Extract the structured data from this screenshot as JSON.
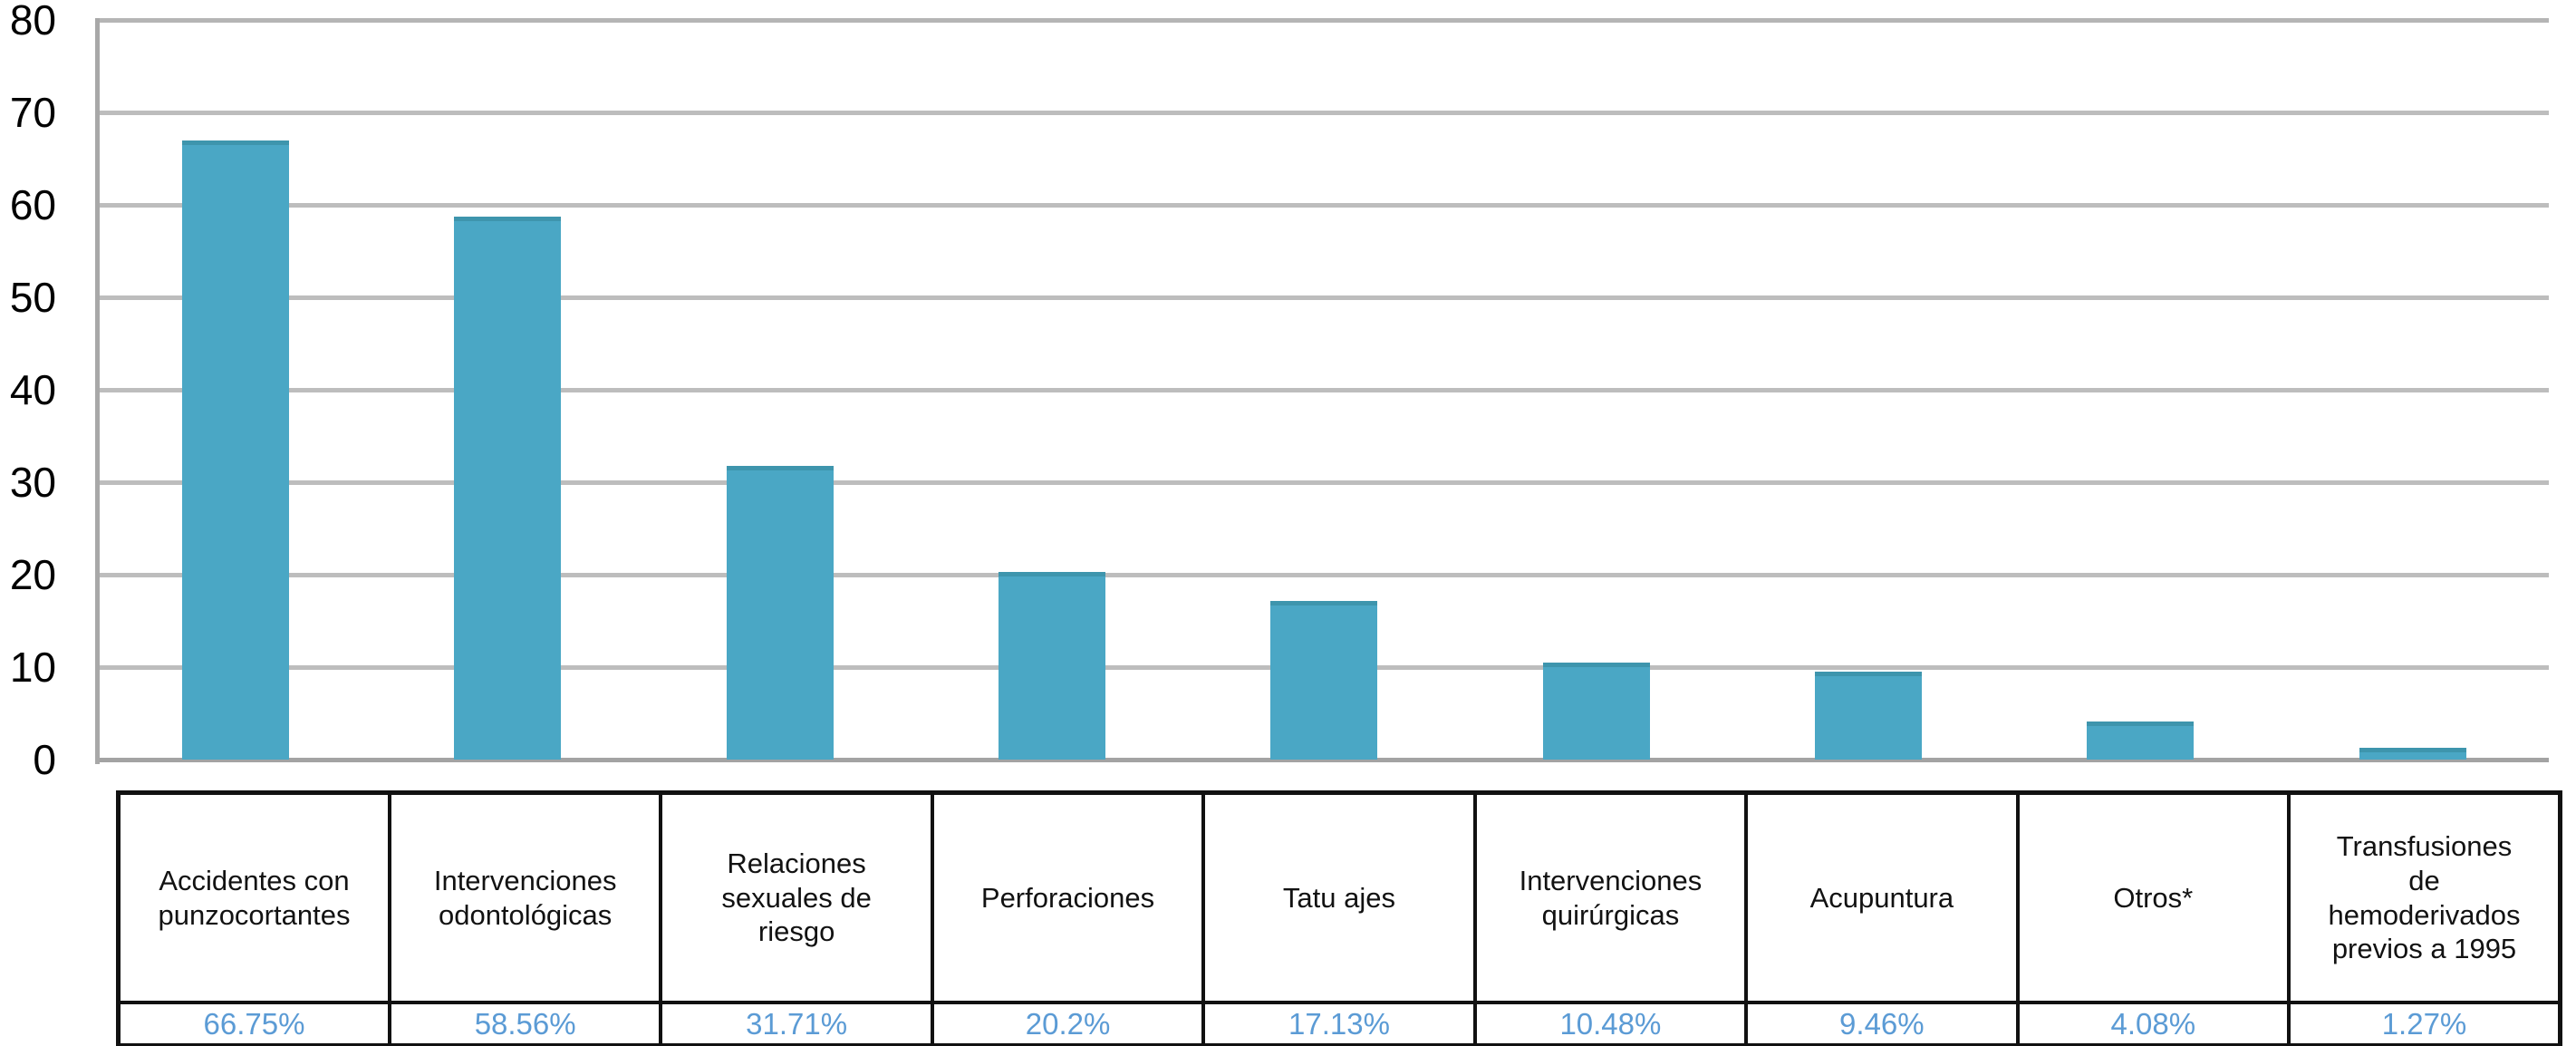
{
  "chart_data": {
    "type": "bar",
    "categories": [
      "Accidentes con punzocortantes",
      "Intervenciones odontológicas",
      "Relaciones sexuales de riesgo",
      "Perforaciones",
      "Tatu ajes",
      "Intervenciones quirúrgicas",
      "Acupuntura",
      "Otros*",
      "Transfusiones de hemoderivados previos a 1995"
    ],
    "values": [
      66.75,
      58.56,
      31.71,
      20.2,
      17.13,
      10.48,
      9.46,
      4.08,
      1.27
    ],
    "value_labels": [
      "66.75%",
      "58.56%",
      "31.71%",
      "20.2%",
      "17.13%",
      "10.48%",
      "9.46%",
      "4.08%",
      "1.27%"
    ],
    "title": "",
    "xlabel": "",
    "ylabel": "",
    "ylim": [
      0,
      80
    ],
    "yticks": [
      0,
      10,
      20,
      30,
      40,
      50,
      60,
      70,
      80
    ],
    "grid": true,
    "legend": false,
    "bar_color": "#4aa7c5",
    "bar_cap_color": "#3e95ad",
    "value_text_color": "#5b9bd5",
    "gridline_color": "#bdbdbd",
    "axis_text_color": "#000000"
  }
}
